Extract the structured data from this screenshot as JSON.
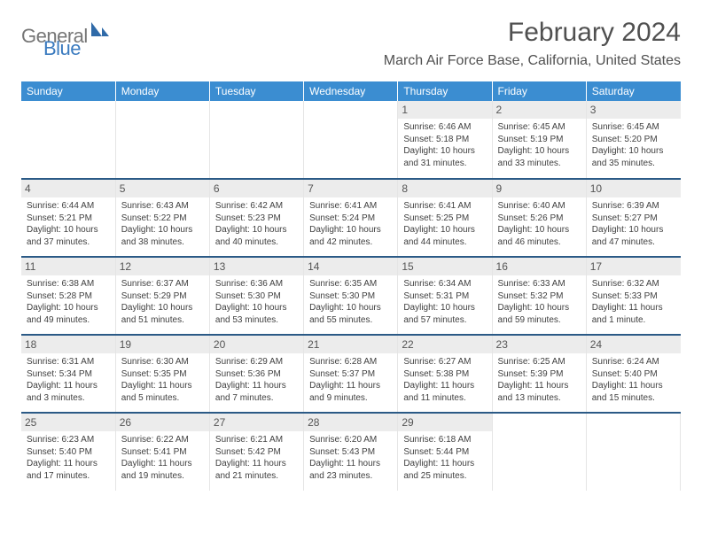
{
  "logo": {
    "general": "General",
    "blue": "Blue"
  },
  "title": "February 2024",
  "location": "March Air Force Base, California, United States",
  "weekdays": [
    "Sunday",
    "Monday",
    "Tuesday",
    "Wednesday",
    "Thursday",
    "Friday",
    "Saturday"
  ],
  "colors": {
    "header_bg": "#3b8dd1",
    "divider": "#2b5a86",
    "daybar": "#ececec",
    "logo_gray": "#767676",
    "logo_blue": "#3b7bbf"
  },
  "weeks": [
    [
      null,
      null,
      null,
      null,
      {
        "n": "1",
        "sr": "Sunrise: 6:46 AM",
        "ss": "Sunset: 5:18 PM",
        "dl": "Daylight: 10 hours and 31 minutes."
      },
      {
        "n": "2",
        "sr": "Sunrise: 6:45 AM",
        "ss": "Sunset: 5:19 PM",
        "dl": "Daylight: 10 hours and 33 minutes."
      },
      {
        "n": "3",
        "sr": "Sunrise: 6:45 AM",
        "ss": "Sunset: 5:20 PM",
        "dl": "Daylight: 10 hours and 35 minutes."
      }
    ],
    [
      {
        "n": "4",
        "sr": "Sunrise: 6:44 AM",
        "ss": "Sunset: 5:21 PM",
        "dl": "Daylight: 10 hours and 37 minutes."
      },
      {
        "n": "5",
        "sr": "Sunrise: 6:43 AM",
        "ss": "Sunset: 5:22 PM",
        "dl": "Daylight: 10 hours and 38 minutes."
      },
      {
        "n": "6",
        "sr": "Sunrise: 6:42 AM",
        "ss": "Sunset: 5:23 PM",
        "dl": "Daylight: 10 hours and 40 minutes."
      },
      {
        "n": "7",
        "sr": "Sunrise: 6:41 AM",
        "ss": "Sunset: 5:24 PM",
        "dl": "Daylight: 10 hours and 42 minutes."
      },
      {
        "n": "8",
        "sr": "Sunrise: 6:41 AM",
        "ss": "Sunset: 5:25 PM",
        "dl": "Daylight: 10 hours and 44 minutes."
      },
      {
        "n": "9",
        "sr": "Sunrise: 6:40 AM",
        "ss": "Sunset: 5:26 PM",
        "dl": "Daylight: 10 hours and 46 minutes."
      },
      {
        "n": "10",
        "sr": "Sunrise: 6:39 AM",
        "ss": "Sunset: 5:27 PM",
        "dl": "Daylight: 10 hours and 47 minutes."
      }
    ],
    [
      {
        "n": "11",
        "sr": "Sunrise: 6:38 AM",
        "ss": "Sunset: 5:28 PM",
        "dl": "Daylight: 10 hours and 49 minutes."
      },
      {
        "n": "12",
        "sr": "Sunrise: 6:37 AM",
        "ss": "Sunset: 5:29 PM",
        "dl": "Daylight: 10 hours and 51 minutes."
      },
      {
        "n": "13",
        "sr": "Sunrise: 6:36 AM",
        "ss": "Sunset: 5:30 PM",
        "dl": "Daylight: 10 hours and 53 minutes."
      },
      {
        "n": "14",
        "sr": "Sunrise: 6:35 AM",
        "ss": "Sunset: 5:30 PM",
        "dl": "Daylight: 10 hours and 55 minutes."
      },
      {
        "n": "15",
        "sr": "Sunrise: 6:34 AM",
        "ss": "Sunset: 5:31 PM",
        "dl": "Daylight: 10 hours and 57 minutes."
      },
      {
        "n": "16",
        "sr": "Sunrise: 6:33 AM",
        "ss": "Sunset: 5:32 PM",
        "dl": "Daylight: 10 hours and 59 minutes."
      },
      {
        "n": "17",
        "sr": "Sunrise: 6:32 AM",
        "ss": "Sunset: 5:33 PM",
        "dl": "Daylight: 11 hours and 1 minute."
      }
    ],
    [
      {
        "n": "18",
        "sr": "Sunrise: 6:31 AM",
        "ss": "Sunset: 5:34 PM",
        "dl": "Daylight: 11 hours and 3 minutes."
      },
      {
        "n": "19",
        "sr": "Sunrise: 6:30 AM",
        "ss": "Sunset: 5:35 PM",
        "dl": "Daylight: 11 hours and 5 minutes."
      },
      {
        "n": "20",
        "sr": "Sunrise: 6:29 AM",
        "ss": "Sunset: 5:36 PM",
        "dl": "Daylight: 11 hours and 7 minutes."
      },
      {
        "n": "21",
        "sr": "Sunrise: 6:28 AM",
        "ss": "Sunset: 5:37 PM",
        "dl": "Daylight: 11 hours and 9 minutes."
      },
      {
        "n": "22",
        "sr": "Sunrise: 6:27 AM",
        "ss": "Sunset: 5:38 PM",
        "dl": "Daylight: 11 hours and 11 minutes."
      },
      {
        "n": "23",
        "sr": "Sunrise: 6:25 AM",
        "ss": "Sunset: 5:39 PM",
        "dl": "Daylight: 11 hours and 13 minutes."
      },
      {
        "n": "24",
        "sr": "Sunrise: 6:24 AM",
        "ss": "Sunset: 5:40 PM",
        "dl": "Daylight: 11 hours and 15 minutes."
      }
    ],
    [
      {
        "n": "25",
        "sr": "Sunrise: 6:23 AM",
        "ss": "Sunset: 5:40 PM",
        "dl": "Daylight: 11 hours and 17 minutes."
      },
      {
        "n": "26",
        "sr": "Sunrise: 6:22 AM",
        "ss": "Sunset: 5:41 PM",
        "dl": "Daylight: 11 hours and 19 minutes."
      },
      {
        "n": "27",
        "sr": "Sunrise: 6:21 AM",
        "ss": "Sunset: 5:42 PM",
        "dl": "Daylight: 11 hours and 21 minutes."
      },
      {
        "n": "28",
        "sr": "Sunrise: 6:20 AM",
        "ss": "Sunset: 5:43 PM",
        "dl": "Daylight: 11 hours and 23 minutes."
      },
      {
        "n": "29",
        "sr": "Sunrise: 6:18 AM",
        "ss": "Sunset: 5:44 PM",
        "dl": "Daylight: 11 hours and 25 minutes."
      },
      null,
      null
    ]
  ]
}
